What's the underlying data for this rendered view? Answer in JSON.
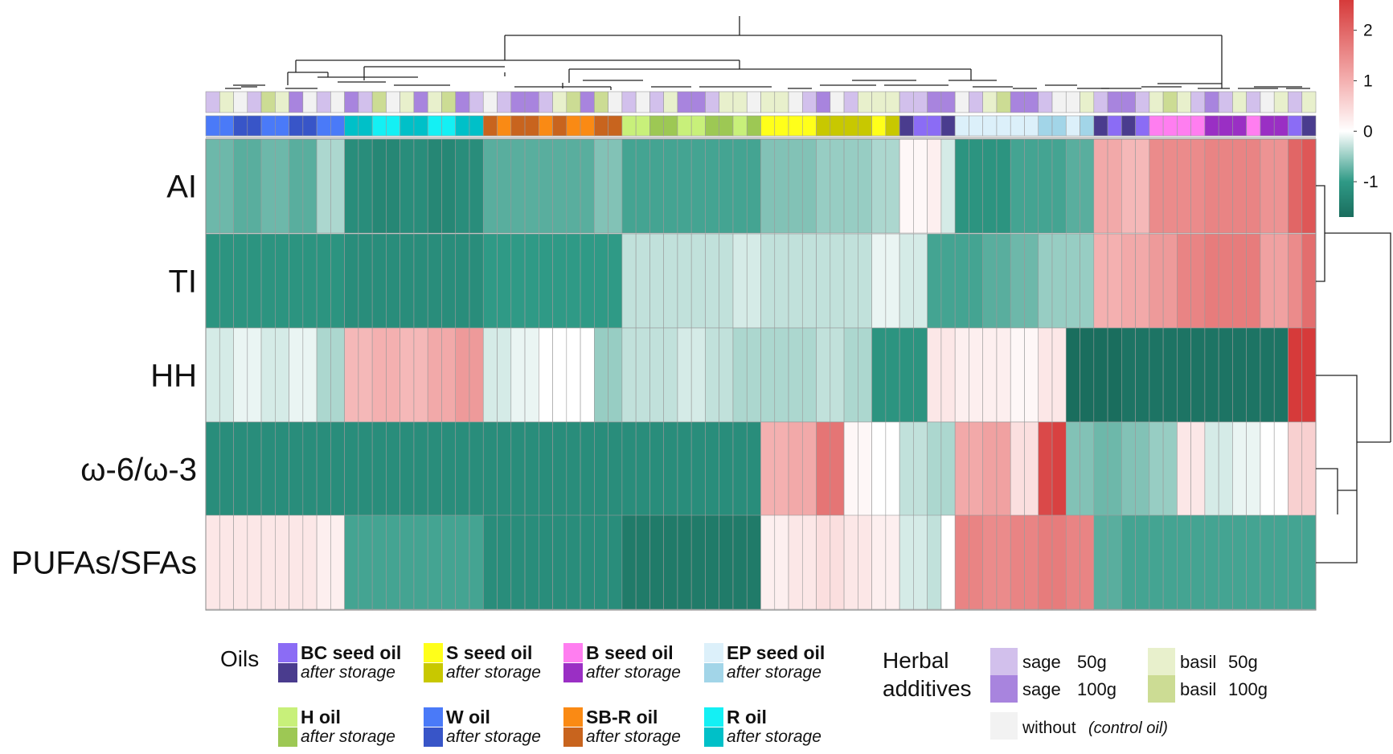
{
  "chart_data": {
    "type": "heatmap",
    "title": "",
    "rows": [
      "AI",
      "TI",
      "HH",
      "ω-6/ω-3",
      "PUFAs/SFAs"
    ],
    "row_order": "hierarchical clustering (dendrogram on right)",
    "n_columns": 80,
    "column_oils": [
      "W",
      "W",
      "W",
      "W",
      "W",
      "W",
      "W",
      "W",
      "W",
      "W",
      "R",
      "R",
      "R",
      "R",
      "R",
      "R",
      "R",
      "R",
      "R",
      "R",
      "SB-R",
      "SB-R",
      "SB-R",
      "SB-R",
      "SB-R",
      "SB-R",
      "SB-R",
      "SB-R",
      "SB-R",
      "SB-R",
      "H",
      "H",
      "H",
      "H",
      "H",
      "H",
      "H",
      "H",
      "H",
      "H",
      "S",
      "S",
      "S",
      "S",
      "S",
      "S",
      "S",
      "S",
      "S",
      "S",
      "BC",
      "BC",
      "BC",
      "BC",
      "EP",
      "EP",
      "EP",
      "EP",
      "EP",
      "EP",
      "EP",
      "EP",
      "EP",
      "EP",
      "BC",
      "BC",
      "BC",
      "BC",
      "B",
      "B",
      "B",
      "B",
      "B",
      "B",
      "B",
      "B",
      "B",
      "B",
      "BC",
      "BC"
    ],
    "column_storage": [
      "f",
      "f",
      "s",
      "s",
      "f",
      "f",
      "s",
      "s",
      "f",
      "f",
      "s",
      "s",
      "f",
      "f",
      "s",
      "s",
      "f",
      "f",
      "s",
      "s",
      "s",
      "f",
      "s",
      "s",
      "f",
      "s",
      "f",
      "f",
      "s",
      "s",
      "f",
      "f",
      "s",
      "s",
      "f",
      "f",
      "s",
      "s",
      "f",
      "s",
      "f",
      "f",
      "f",
      "f",
      "s",
      "s",
      "s",
      "s",
      "f",
      "s",
      "s",
      "f",
      "f",
      "s",
      "f",
      "f",
      "f",
      "f",
      "f",
      "f",
      "s",
      "s",
      "f",
      "s",
      "s",
      "f",
      "s",
      "f",
      "f",
      "f",
      "f",
      "f",
      "s",
      "s",
      "s",
      "f",
      "s",
      "s",
      "f",
      "s"
    ],
    "column_herbs": [
      "s1",
      "b1",
      "n",
      "s1",
      "b2",
      "b1",
      "s2",
      "n",
      "s1",
      "n",
      "s2",
      "s1",
      "b2",
      "n",
      "b1",
      "s2",
      "b1",
      "b2",
      "s2",
      "s1",
      "n",
      "s1",
      "s2",
      "s2",
      "s1",
      "b1",
      "b2",
      "s2",
      "b2",
      "n",
      "s1",
      "n",
      "s1",
      "b1",
      "s2",
      "s2",
      "s1",
      "b1",
      "b1",
      "n",
      "b1",
      "b1",
      "n",
      "s1",
      "s2",
      "n",
      "s1",
      "b1",
      "b1",
      "b1",
      "s1",
      "s1",
      "s2",
      "s2",
      "n",
      "s1",
      "b1",
      "b2",
      "s2",
      "s2",
      "s1",
      "n",
      "n",
      "b1",
      "s1",
      "s2",
      "s2",
      "s1",
      "b1",
      "b2",
      "b1",
      "s1",
      "s2",
      "s1",
      "b1",
      "s1",
      "n",
      "b1",
      "s1",
      "b1"
    ],
    "color_scale": {
      "ticks": [
        2,
        1,
        0,
        -1
      ],
      "min": -1.7,
      "max": 2.6,
      "colors": [
        "#1a6e5e",
        "#2f9a86",
        "#ffffff",
        "#f4b0b0",
        "#d63a3a"
      ]
    },
    "values": {
      "AI": [
        -0.7,
        -0.7,
        -0.8,
        -0.8,
        -0.7,
        -0.7,
        -0.8,
        -0.8,
        -0.4,
        -0.4,
        -1.2,
        -1.2,
        -1.3,
        -1.3,
        -1.2,
        -1.2,
        -1.3,
        -1.3,
        -1.2,
        -1.2,
        -0.8,
        -0.8,
        -0.8,
        -0.8,
        -0.8,
        -0.8,
        -0.8,
        -0.8,
        -0.6,
        -0.6,
        -0.9,
        -0.9,
        -0.9,
        -0.9,
        -0.9,
        -0.9,
        -0.9,
        -0.9,
        -0.9,
        -0.9,
        -0.6,
        -0.6,
        -0.6,
        -0.6,
        -0.5,
        -0.5,
        -0.5,
        -0.5,
        -0.4,
        -0.4,
        0.1,
        0.1,
        0.2,
        -0.2,
        -1.1,
        -1.1,
        -1.1,
        -1.1,
        -0.9,
        -0.9,
        -0.9,
        -0.9,
        -0.8,
        -0.8,
        1.1,
        1.1,
        0.9,
        0.9,
        1.5,
        1.5,
        1.5,
        1.5,
        1.6,
        1.6,
        1.6,
        1.6,
        1.4,
        1.4,
        2.0,
        2.2
      ],
      "TI": [
        -1.1,
        -1.1,
        -1.1,
        -1.1,
        -1.1,
        -1.1,
        -1.1,
        -1.1,
        -1.1,
        -1.1,
        -1.2,
        -1.2,
        -1.2,
        -1.2,
        -1.2,
        -1.2,
        -1.2,
        -1.2,
        -1.2,
        -1.2,
        -1.0,
        -1.0,
        -1.0,
        -1.0,
        -1.0,
        -1.0,
        -1.0,
        -1.0,
        -1.0,
        -1.0,
        -0.3,
        -0.3,
        -0.3,
        -0.3,
        -0.3,
        -0.3,
        -0.3,
        -0.3,
        -0.2,
        -0.2,
        -0.3,
        -0.3,
        -0.3,
        -0.3,
        -0.3,
        -0.3,
        -0.3,
        -0.3,
        -0.1,
        -0.1,
        -0.2,
        -0.2,
        -0.9,
        -0.9,
        -0.9,
        -0.9,
        -0.8,
        -0.8,
        -0.7,
        -0.7,
        -0.5,
        -0.5,
        -0.5,
        -0.5,
        1.0,
        1.0,
        1.1,
        1.1,
        1.3,
        1.3,
        1.6,
        1.6,
        1.7,
        1.7,
        1.7,
        1.7,
        1.2,
        1.2,
        1.5,
        1.9
      ],
      "HH": [
        -0.2,
        -0.2,
        -0.1,
        -0.1,
        -0.2,
        -0.2,
        -0.1,
        -0.1,
        -0.4,
        -0.4,
        0.9,
        0.9,
        1.0,
        1.0,
        0.9,
        0.9,
        1.1,
        1.1,
        1.3,
        1.3,
        -0.2,
        -0.2,
        -0.1,
        -0.1,
        0.0,
        0.0,
        0.0,
        0.0,
        -0.5,
        -0.5,
        -0.3,
        -0.3,
        -0.3,
        -0.3,
        -0.2,
        -0.2,
        -0.3,
        -0.3,
        -0.4,
        -0.4,
        -0.4,
        -0.4,
        -0.4,
        -0.4,
        -0.3,
        -0.3,
        -0.4,
        -0.4,
        -1.1,
        -1.1,
        -1.1,
        -1.1,
        0.3,
        0.3,
        0.2,
        0.2,
        0.2,
        0.2,
        0.1,
        0.1,
        0.3,
        0.3,
        -1.7,
        -1.7,
        -1.7,
        -1.7,
        -1.6,
        -1.6,
        -1.6,
        -1.6,
        -1.6,
        -1.6,
        -1.6,
        -1.6,
        -1.6,
        -1.6,
        -1.6,
        -1.6
      ],
      "ω-6/ω-3": [
        -1.2,
        -1.2,
        -1.2,
        -1.2,
        -1.2,
        -1.2,
        -1.2,
        -1.2,
        -1.2,
        -1.2,
        -1.2,
        -1.2,
        -1.2,
        -1.2,
        -1.2,
        -1.2,
        -1.2,
        -1.2,
        -1.2,
        -1.2,
        -1.2,
        -1.2,
        -1.2,
        -1.2,
        -1.2,
        -1.2,
        -1.2,
        -1.2,
        -1.2,
        -1.2,
        -1.2,
        -1.2,
        -1.2,
        -1.2,
        -1.2,
        -1.2,
        -1.2,
        -1.2,
        -1.2,
        -1.2,
        1.0,
        1.0,
        1.1,
        1.1,
        1.8,
        1.8,
        0.1,
        0.1,
        0.0,
        0.0,
        -0.3,
        -0.3,
        -0.4,
        -0.4,
        1.1,
        1.1,
        1.2,
        1.2,
        0.4,
        0.4,
        2.4,
        2.5,
        -0.6,
        -0.6,
        -0.7,
        -0.7,
        -0.6,
        -0.6,
        -0.5,
        -0.5,
        0.3,
        0.3,
        -0.2,
        -0.2,
        -0.1,
        -0.1,
        0.0,
        0.0,
        0.6,
        0.6
      ],
      "PUFAs/SFAs": [
        0.3,
        0.3,
        0.3,
        0.3,
        0.3,
        0.3,
        0.3,
        0.3,
        0.2,
        0.2,
        -0.9,
        -0.9,
        -0.9,
        -0.9,
        -0.9,
        -0.9,
        -0.9,
        -0.9,
        -0.9,
        -0.9,
        -1.2,
        -1.2,
        -1.2,
        -1.2,
        -1.2,
        -1.2,
        -1.2,
        -1.2,
        -1.2,
        -1.2,
        -1.5,
        -1.5,
        -1.5,
        -1.5,
        -1.5,
        -1.5,
        -1.5,
        -1.5,
        -1.5,
        -1.5,
        0.2,
        0.2,
        0.3,
        0.3,
        0.4,
        0.4,
        0.3,
        0.3,
        0.2,
        0.2,
        -0.2,
        -0.2,
        -0.3,
        0.0,
        1.6,
        1.6,
        1.5,
        1.5,
        1.6,
        1.6,
        1.7,
        1.7,
        1.6,
        1.6,
        -0.8,
        -0.8,
        -0.9,
        -0.9,
        -0.9,
        -0.9,
        -0.9,
        -0.9,
        -0.9,
        -0.9,
        -0.9,
        -0.9,
        -0.9,
        -0.9,
        -0.9,
        -0.9
      ]
    },
    "legend": {
      "oils_title": "Oils",
      "after_label": "after storage",
      "oils": [
        {
          "key": "BC",
          "label": "BC seed oil",
          "fresh": "#8b6cf5",
          "stored": "#4a3c8e"
        },
        {
          "key": "S",
          "label": "S seed oil",
          "fresh": "#ffff1a",
          "stored": "#c8c800"
        },
        {
          "key": "B",
          "label": "B seed oil",
          "fresh": "#ff7ef0",
          "stored": "#9a2fc4"
        },
        {
          "key": "EP",
          "label": "EP seed oil",
          "fresh": "#dcf0fa",
          "stored": "#a2d5e8"
        },
        {
          "key": "H",
          "label": "H oil",
          "fresh": "#c8f07a",
          "stored": "#9dc854"
        },
        {
          "key": "W",
          "label": "W oil",
          "fresh": "#4a7af8",
          "stored": "#3855c8"
        },
        {
          "key": "SB-R",
          "label": "SB-R oil",
          "fresh": "#fa8a14",
          "stored": "#c8641e"
        },
        {
          "key": "R",
          "label": "R oil",
          "fresh": "#14f0f4",
          "stored": "#00c0c8"
        }
      ],
      "herbs_title_1": "Herbal",
      "herbs_title_2": "additives",
      "herbs": [
        {
          "key": "s1",
          "name": "sage",
          "dose": "50g",
          "color": "#d2c0ec"
        },
        {
          "key": "s2",
          "name": "sage",
          "dose": "100g",
          "color": "#a884de"
        },
        {
          "key": "b1",
          "name": "basil",
          "dose": "50g",
          "color": "#e8f0cc"
        },
        {
          "key": "b2",
          "name": "basil",
          "dose": "100g",
          "color": "#ccdc94"
        }
      ],
      "control_label": "without",
      "control_note": "(control oil)",
      "control_color": "#f2f2f2"
    }
  }
}
